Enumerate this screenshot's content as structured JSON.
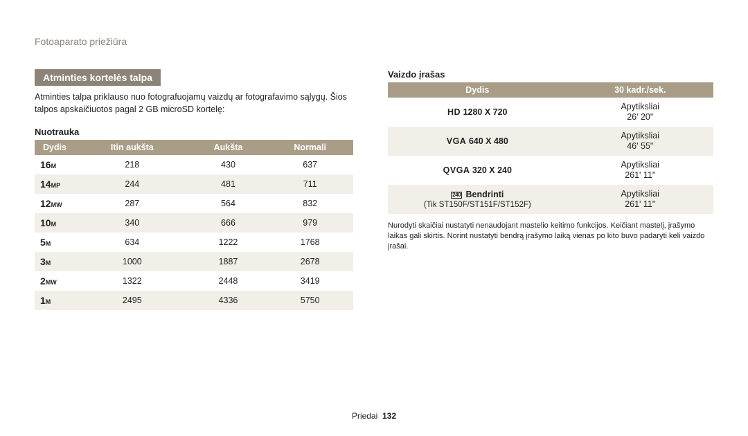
{
  "breadcrumb": "Fotoaparato priežiūra",
  "section_header": "Atminties kortelės talpa",
  "intro": "Atminties talpa priklauso nuo fotografuojamų vaizdų ar fotografavimo sąlygų. Šios talpos apskaičiuotos pagal 2 GB microSD kortelę:",
  "photo": {
    "subhead": "Nuotrauka",
    "columns": [
      "Dydis",
      "Itin aukšta",
      "Aukšta",
      "Normali"
    ],
    "rows": [
      {
        "size_prefix": "16",
        "size_suffix": "M",
        "vals": [
          "218",
          "430",
          "637"
        ]
      },
      {
        "size_prefix": "14",
        "size_suffix": "MP",
        "vals": [
          "244",
          "481",
          "711"
        ]
      },
      {
        "size_prefix": "12",
        "size_suffix": "MW",
        "vals": [
          "287",
          "564",
          "832"
        ]
      },
      {
        "size_prefix": "10",
        "size_suffix": "M",
        "vals": [
          "340",
          "666",
          "979"
        ]
      },
      {
        "size_prefix": "5",
        "size_suffix": "M",
        "vals": [
          "634",
          "1222",
          "1768"
        ]
      },
      {
        "size_prefix": "3",
        "size_suffix": "M",
        "vals": [
          "1000",
          "1887",
          "2678"
        ]
      },
      {
        "size_prefix": "2",
        "size_suffix": "MW",
        "vals": [
          "1322",
          "2448",
          "3419"
        ]
      },
      {
        "size_prefix": "1",
        "size_suffix": "M",
        "vals": [
          "2495",
          "4336",
          "5750"
        ]
      }
    ]
  },
  "video": {
    "subhead": "Vaizdo įrašas",
    "columns": [
      "Dydis",
      "30 kadr./sek."
    ],
    "rows": [
      {
        "fmt": "HD",
        "res": " 1280 X 720",
        "sub": "",
        "val_top": "Apytiksliai",
        "val_bot": "26' 20\""
      },
      {
        "fmt": "VGA",
        "res": " 640 X 480",
        "sub": "",
        "val_top": "Apytiksliai",
        "val_bot": "46' 55\""
      },
      {
        "fmt": "QVGA",
        "res": " 320 X 240",
        "sub": "",
        "val_top": "Apytiksliai",
        "val_bot": "261' 11\""
      },
      {
        "fmt": "",
        "res": " Bendrinti",
        "sub": "(Tik ST150F/ST151F/ST152F)",
        "val_top": "Apytiksliai",
        "val_bot": "261' 11\"",
        "icon": "240"
      }
    ],
    "note": "Nurodyti skaičiai nustatyti nenaudojant mastelio keitimo funkcijos. Keičiant mastelį, įrašymo laikas gali skirtis. Norint nustatyti bendrą įrašymo laiką vienas po kito buvo padaryti keli vaizdo įrašai."
  },
  "footer": {
    "label": "Priedai",
    "page": "132"
  }
}
